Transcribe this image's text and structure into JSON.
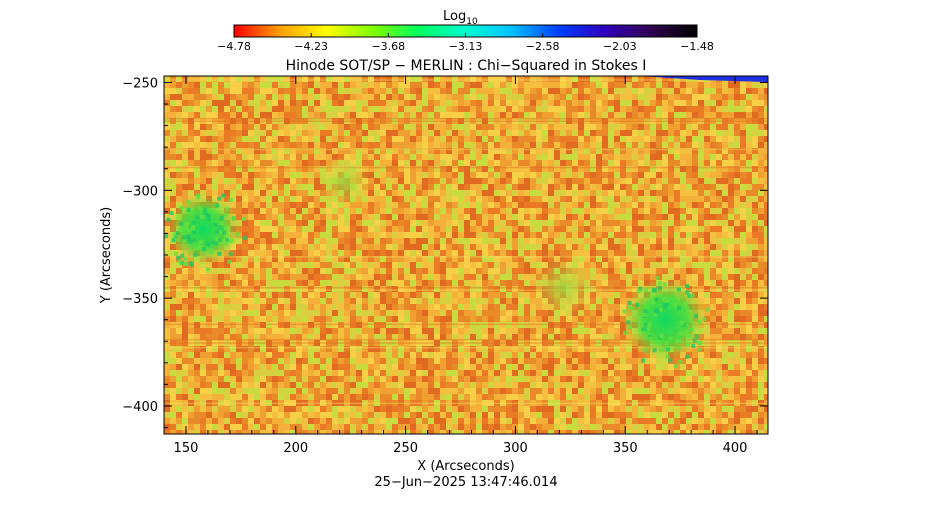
{
  "colorbar": {
    "title_base": "Log",
    "title_sub": "10",
    "ticks": [
      "−4.78",
      "−4.23",
      "−3.68",
      "−3.13",
      "−2.58",
      "−2.03",
      "−1.48"
    ],
    "range": [
      -4.78,
      -1.48
    ],
    "colormap": [
      "#ff0000",
      "#ffa000",
      "#ffff00",
      "#80ff00",
      "#00ff60",
      "#00ffd0",
      "#00c0ff",
      "#0040ff",
      "#3000c0",
      "#300050",
      "#000000"
    ]
  },
  "footer": {
    "timestamp": "25−Jun−2025 13:47:46.014"
  },
  "chart_data": {
    "type": "heatmap",
    "title": "Hinode SOT/SP − MERLIN : Chi−Squared in Stokes I",
    "xlabel": "X (Arcseconds)",
    "ylabel": "Y (Arcseconds)",
    "xlim": [
      140,
      415
    ],
    "ylim": [
      -413,
      -247
    ],
    "x_ticks": [
      150,
      200,
      250,
      300,
      350,
      400
    ],
    "y_ticks": [
      -250,
      -300,
      -350,
      -400
    ],
    "x_tick_labels": [
      "150",
      "200",
      "250",
      "300",
      "350",
      "400"
    ],
    "y_tick_labels": [
      "−250",
      "−300",
      "−350",
      "−400"
    ],
    "background_log_value": -4.1,
    "features": [
      {
        "kind": "sunspot",
        "center": [
          158,
          -318
        ],
        "radius": 14,
        "log_value": -3.3
      },
      {
        "kind": "sunspot",
        "center": [
          368,
          -360
        ],
        "radius": 16,
        "log_value": -3.2
      },
      {
        "kind": "plage",
        "center": [
          222,
          -296
        ],
        "radius": 10,
        "log_value": -3.6
      },
      {
        "kind": "plage",
        "center": [
          322,
          -345
        ],
        "radius": 12,
        "log_value": -3.7
      }
    ],
    "colors": {
      "low": "#ff2000",
      "mid": "#ffe000",
      "high": "#30e040"
    }
  }
}
